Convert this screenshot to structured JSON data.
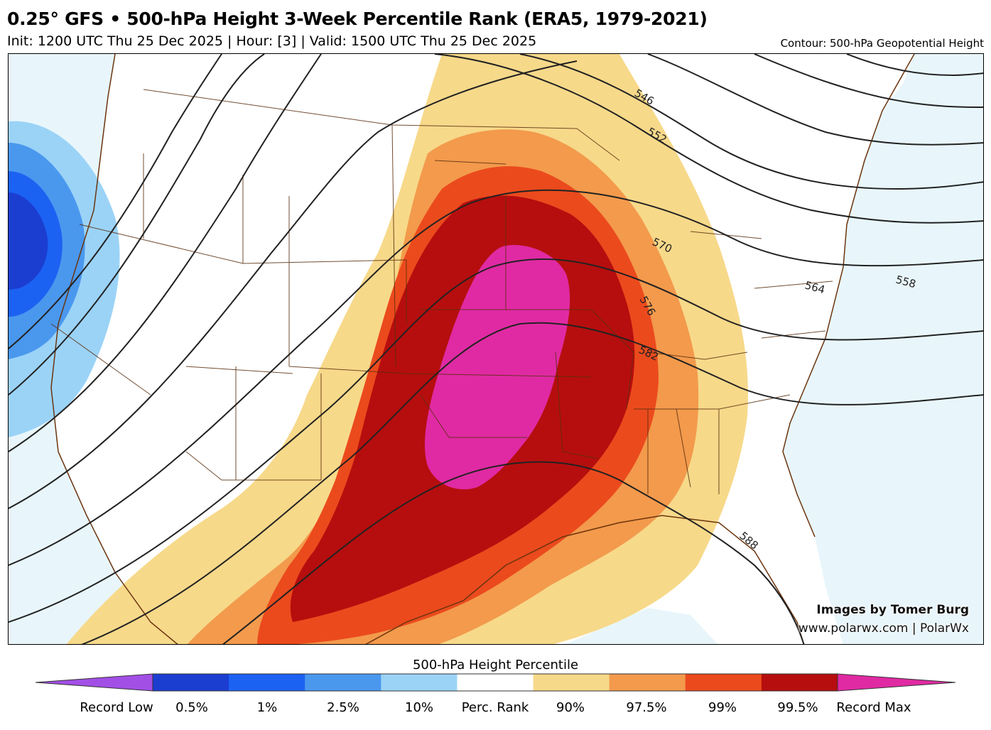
{
  "header": {
    "title": "0.25° GFS • 500-hPa Height 3-Week Percentile Rank (ERA5, 1979-2021)",
    "subtitle": "Init: 1200 UTC Thu 25 Dec 2025 | Hour: [3] | Valid: 1500 UTC Thu 25 Dec 2025",
    "contour_note": "Contour: 500-hPa Geopotential Height"
  },
  "map": {
    "contour_labels": [
      "546",
      "552",
      "558",
      "564",
      "570",
      "576",
      "582",
      "588"
    ],
    "credit_line1": "Images by Tomer Burg",
    "credit_line2": "www.polarwx.com | PolarWx"
  },
  "colorbar": {
    "title": "500-hPa Height Percentile",
    "labels": [
      "Record Low",
      "0.5%",
      "1%",
      "2.5%",
      "10%",
      "Perc. Rank",
      "90%",
      "97.5%",
      "99%",
      "99.5%",
      "Record Max"
    ],
    "colors": {
      "record_low": "#a24fe6",
      "p0_5": "#1b3ed1",
      "p1": "#1c62f2",
      "p2_5": "#4a98ee",
      "p10": "#9bd3f7",
      "neutral": "#ffffff",
      "p90": "#f7d98a",
      "p97_5": "#f39a4c",
      "p99": "#eb4a1d",
      "p99_5": "#b60e0e",
      "record_max": "#e02aa3"
    }
  }
}
